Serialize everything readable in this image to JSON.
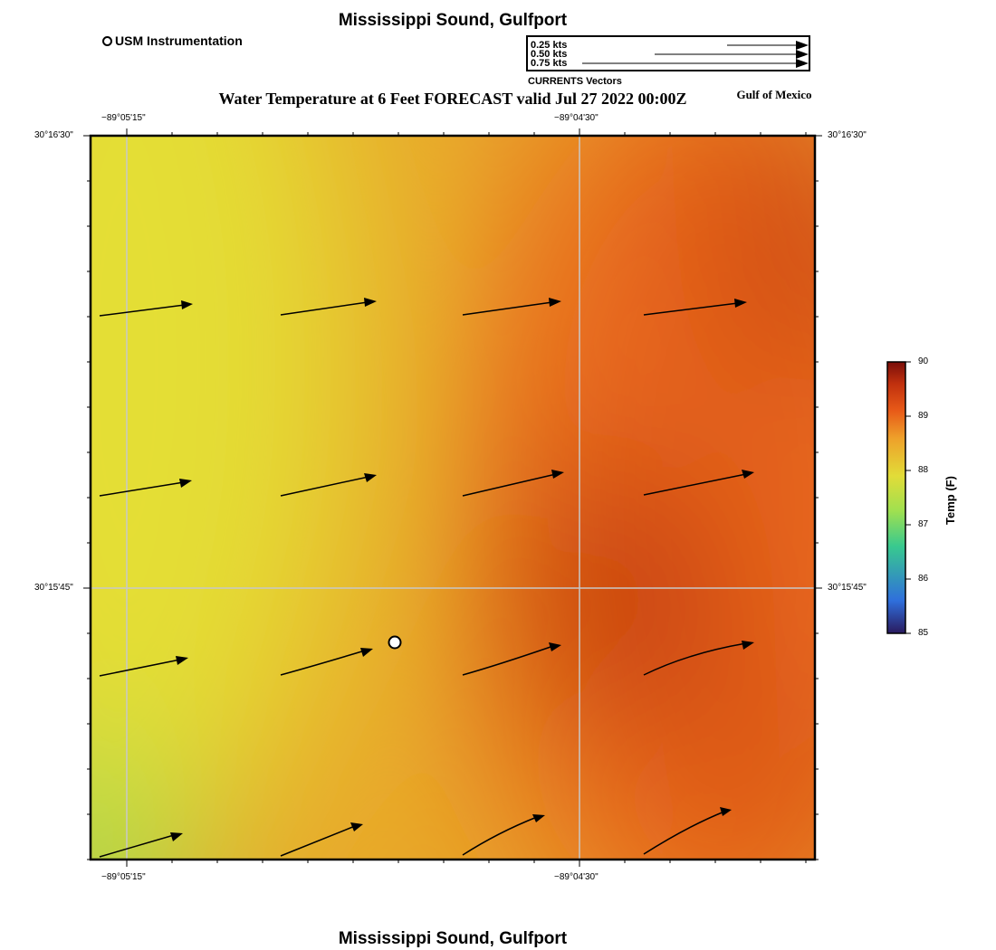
{
  "title": "Mississippi Sound, Gulfport",
  "footer_title": "Mississippi Sound, Gulfport",
  "subtitle": "Water Temperature at 6 Feet FORECAST valid Jul 27 2022 00:00Z",
  "region_label": "Gulf of Mexico",
  "station_legend": {
    "label": "USM Instrumentation",
    "icon": "open-circle-icon"
  },
  "vector_legend": {
    "caption": "CURRENTS Vectors",
    "entries": [
      "0.25 kts",
      "0.50 kts",
      "0.75 kts"
    ]
  },
  "axes": {
    "lon_ticks": [
      "−89°05'15\"",
      "−89°04'30\""
    ],
    "lat_ticks": [
      "30°16'30\"",
      "30°15'45\""
    ]
  },
  "colorbar": {
    "label": "Temp (F)",
    "ticks": [
      "90",
      "89",
      "88",
      "87",
      "86",
      "85"
    ],
    "min": 85,
    "max": 90,
    "colors": [
      "#2a1a5e",
      "#2f6fdc",
      "#38c98f",
      "#9fe050",
      "#e2dc38",
      "#eea02a",
      "#e85a18",
      "#c0300e",
      "#7a0e0a"
    ]
  },
  "field_colors": {
    "cool": "#9fe050",
    "mild": "#e4de36",
    "warm": "#e8a82a",
    "hot": "#e8661a",
    "hottest": "#c2380e"
  },
  "station": {
    "name": "USM Instrumentation"
  }
}
